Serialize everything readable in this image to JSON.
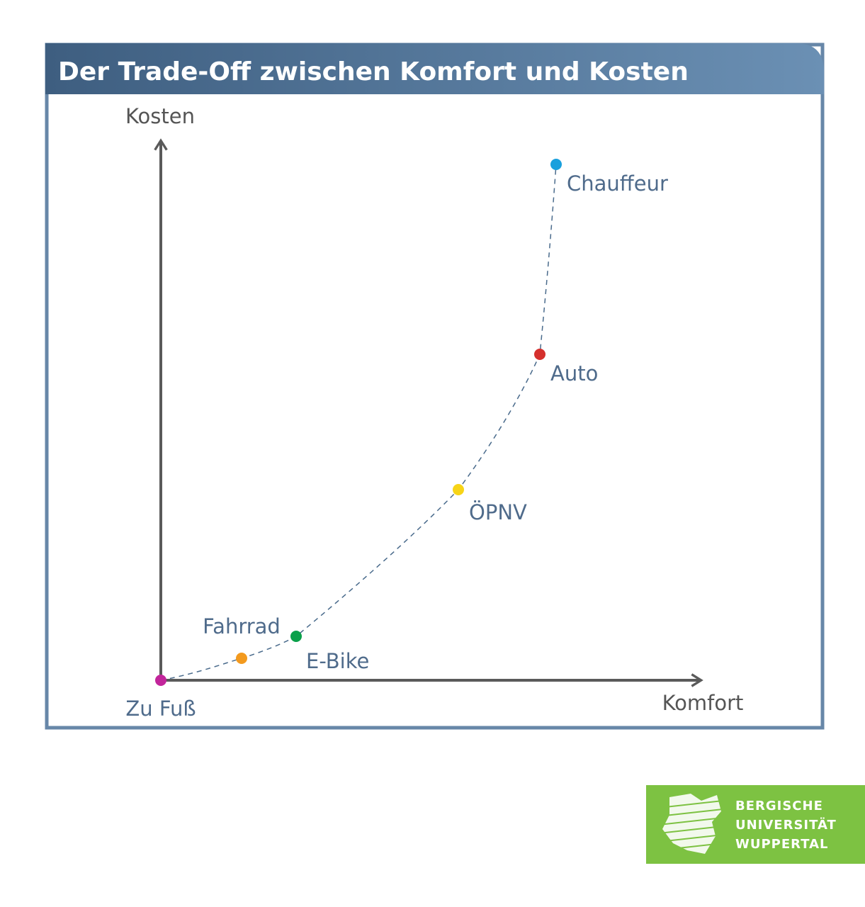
{
  "title": "Der Trade-Off zwischen Komfort und Kosten",
  "axes": {
    "y_label": "Kosten",
    "x_label": "Komfort"
  },
  "points": [
    {
      "label": "Zu Fuß",
      "color": "#c2259b"
    },
    {
      "label": "Fahrrad",
      "color": "#f39a1e"
    },
    {
      "label": "E-Bike",
      "color": "#0aa04a"
    },
    {
      "label": "ÖPNV",
      "color": "#f7d417"
    },
    {
      "label": "Auto",
      "color": "#d5302d"
    },
    {
      "label": "Chauffeur",
      "color": "#1aa0dd"
    }
  ],
  "logo": {
    "lines": [
      "BERGISCHE",
      "UNIVERSITÄT",
      "WUPPERTAL"
    ]
  }
}
